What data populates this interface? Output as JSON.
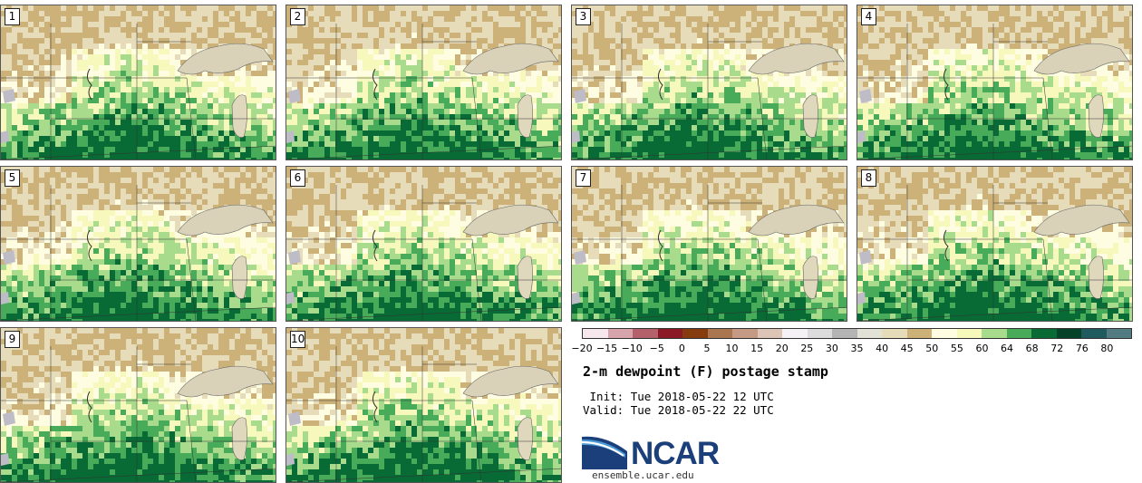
{
  "panels": [
    {
      "number": "1"
    },
    {
      "number": "2"
    },
    {
      "number": "3"
    },
    {
      "number": "4"
    },
    {
      "number": "5"
    },
    {
      "number": "6"
    },
    {
      "number": "7"
    },
    {
      "number": "8"
    },
    {
      "number": "9"
    },
    {
      "number": "10"
    }
  ],
  "colorbar": {
    "tick_labels": [
      "−20",
      "−15",
      "−10",
      "−5",
      "0",
      "5",
      "10",
      "15",
      "20",
      "25",
      "30",
      "35",
      "40",
      "45",
      "50",
      "55",
      "60",
      "64",
      "68",
      "72",
      "76",
      "80"
    ],
    "colors": [
      "#f6e8ec",
      "#d8a4ac",
      "#b4616b",
      "#8b1a26",
      "#873c10",
      "#a97650",
      "#c49a84",
      "#dcc4b6",
      "#f4f2f4",
      "#dcdcdc",
      "#b4b4b4",
      "#e2e1d6",
      "#e6dcba",
      "#ccb278",
      "#fefde2",
      "#f6f8bc",
      "#a8dc8c",
      "#48ab5a",
      "#086a34",
      "#04422a",
      "#1e5a5e",
      "#527c82"
    ],
    "unit": "F"
  },
  "title": "2-m dewpoint (F) postage stamp",
  "init_label": " Init:",
  "init_time": "Tue 2018-05-22 12 UTC",
  "valid_label": "Valid:",
  "valid_time": "Tue 2018-05-22 22 UTC",
  "logo": {
    "text": "NCAR",
    "url": "ensemble.ucar.edu",
    "color": "#1a3f7a"
  }
}
